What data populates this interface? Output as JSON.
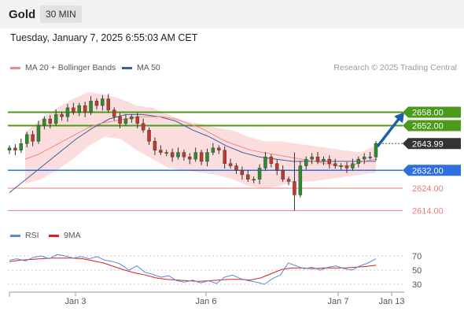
{
  "header": {
    "title": "Gold",
    "timeframe": "30 MIN"
  },
  "datetime": "Tuesday, January 7, 2025 6:55:03 AM CET",
  "legend": [
    {
      "label": "MA 20 + Bollinger Bands",
      "color": "#f08a8a"
    },
    {
      "label": "MA 50",
      "color": "#3b5ea8"
    }
  ],
  "credit": "Research © 2025 Trading Central",
  "colors": {
    "bull": "#2e8b2e",
    "bear": "#c0392b",
    "band": "#fbd2d2",
    "ma20": "#ef8a8a",
    "ma50": "#3b5ea8",
    "resistance": "#4c9a1a",
    "support": "#2f6fe0",
    "minor_support": "#e67e7e",
    "arrow": "#1f5fa8",
    "price_tag": "#333333",
    "rsi": "#5b8ad6",
    "rsi_ma": "#d62020"
  },
  "chart_data": [
    {
      "type": "candlestick",
      "title": "",
      "x_ticks": [
        "Jan 3",
        "Jan 6",
        "Jan 7",
        "Jan 13"
      ],
      "ylim": [
        2606,
        2673
      ],
      "levels": [
        {
          "value": 2658.0,
          "label": "2658.00",
          "kind": "resistance"
        },
        {
          "value": 2652.0,
          "label": "2652.00",
          "kind": "resistance"
        },
        {
          "value": 2643.99,
          "label": "2643.99",
          "kind": "price"
        },
        {
          "value": 2632.0,
          "label": "2632.00",
          "kind": "support"
        },
        {
          "value": 2624.0,
          "label": "2624.00",
          "kind": "minor_support"
        },
        {
          "value": 2614.0,
          "label": "2614.00",
          "kind": "minor_support"
        }
      ],
      "closes": [
        2642,
        2641,
        2644,
        2648,
        2645,
        2652,
        2655,
        2653,
        2657,
        2656,
        2660,
        2658,
        2661,
        2658,
        2663,
        2661,
        2664,
        2659,
        2656,
        2653,
        2655,
        2656,
        2653,
        2650,
        2645,
        2641,
        2640,
        2640,
        2638,
        2640,
        2638,
        2637,
        2640,
        2636,
        2640,
        2642,
        2641,
        2635,
        2634,
        2632,
        2630,
        2628,
        2628,
        2633,
        2638,
        2635,
        2632,
        2628,
        2627,
        2621,
        2634,
        2637,
        2638,
        2636,
        2637,
        2635,
        2634,
        2634,
        2633,
        2635,
        2637,
        2638,
        2638,
        2644
      ],
      "ma20": [
        2637,
        2639,
        2642,
        2645,
        2648,
        2651,
        2653,
        2654,
        2655,
        2656,
        2656,
        2656,
        2655,
        2653,
        2651,
        2648,
        2645,
        2643,
        2641,
        2640,
        2639,
        2638,
        2637,
        2636,
        2635,
        2634,
        2634,
        2636,
        2637
      ],
      "bb_upper": [
        2649,
        2655,
        2660,
        2664,
        2667,
        2666,
        2664,
        2661,
        2660,
        2657,
        2654,
        2653,
        2651,
        2650,
        2647,
        2645,
        2645,
        2644,
        2643,
        2642,
        2641,
        2640,
        2643
      ],
      "bb_lower": [
        2626,
        2628,
        2632,
        2637,
        2643,
        2647,
        2646,
        2641,
        2637,
        2633,
        2632,
        2631,
        2630,
        2628,
        2625,
        2624,
        2625,
        2627,
        2627,
        2628,
        2629,
        2630,
        2631
      ],
      "ma50": [
        2622,
        2628,
        2634,
        2640,
        2646,
        2651,
        2655,
        2657,
        2657,
        2656,
        2654,
        2650,
        2647,
        2643,
        2640,
        2638,
        2637,
        2636,
        2636,
        2636,
        2636,
        2636,
        2636
      ],
      "projection": {
        "from": 2642,
        "to": 2658
      }
    },
    {
      "type": "line",
      "title": "",
      "legend": [
        {
          "label": "RSI",
          "color": "#5b8ad6"
        },
        {
          "label": "9MA",
          "color": "#d62020"
        }
      ],
      "y_ticks": [
        "70",
        "50",
        "30"
      ],
      "ylim": [
        20,
        80
      ],
      "rsi": [
        64,
        66,
        63,
        68,
        70,
        66,
        72,
        70,
        67,
        69,
        66,
        69,
        64,
        62,
        58,
        50,
        56,
        47,
        44,
        40,
        42,
        35,
        33,
        36,
        32,
        35,
        31,
        40,
        43,
        38,
        35,
        33,
        30,
        38,
        43,
        60,
        56,
        52,
        54,
        50,
        54,
        56,
        52,
        50,
        56,
        60,
        66
      ],
      "rsi_ma": [
        62,
        64,
        65,
        66,
        67,
        67,
        67,
        66,
        63,
        60,
        55,
        50,
        46,
        43,
        39,
        37,
        36,
        35,
        34,
        35,
        36,
        37,
        37,
        36,
        39,
        45,
        51,
        53,
        53,
        52,
        53,
        53,
        53,
        54,
        55,
        57
      ]
    }
  ]
}
